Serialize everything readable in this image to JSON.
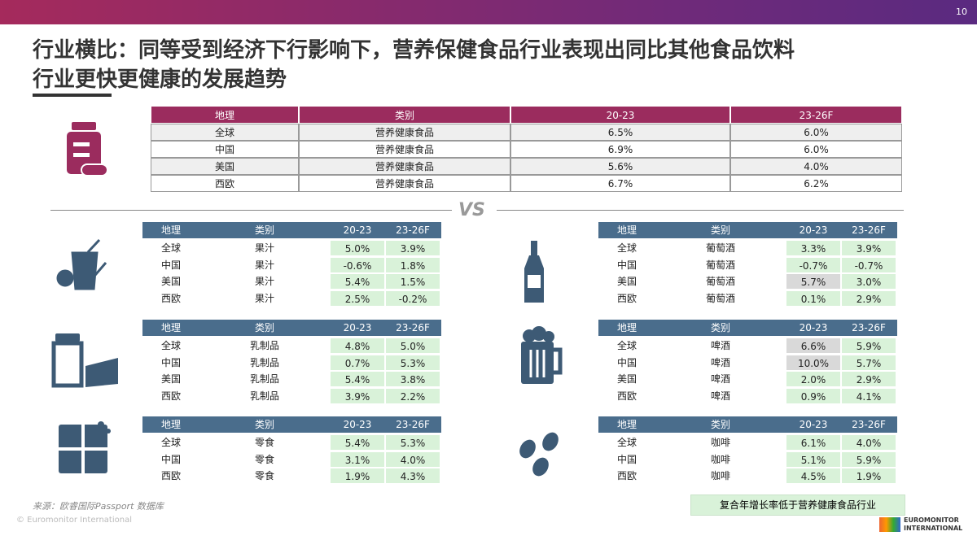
{
  "page_number": "10",
  "title_lines": [
    "行业横比：同等受到经济下行影响下，营养保健食品行业表现出同比其他食品饮料",
    "行业更快更健康的发展趋势"
  ],
  "main_table": {
    "header": [
      "地理",
      "类别",
      "20-23",
      "23-26F"
    ],
    "rows": [
      [
        "全球",
        "营养健康食品",
        "6.5%",
        "6.0%"
      ],
      [
        "中国",
        "营养健康食品",
        "6.9%",
        "6.0%"
      ],
      [
        "美国",
        "营养健康食品",
        "5.6%",
        "4.0%"
      ],
      [
        "西欧",
        "营养健康食品",
        "6.7%",
        "6.2%"
      ]
    ]
  },
  "vs": "VS",
  "tables": [
    {
      "header": [
        "地理",
        "类别",
        "20-23",
        "23-26F"
      ],
      "rows": [
        [
          "全球",
          "果汁",
          "5.0%",
          "3.9%"
        ],
        [
          "中国",
          "果汁",
          "-0.6%",
          "1.8%"
        ],
        [
          "美国",
          "果汁",
          "5.4%",
          "1.5%"
        ],
        [
          "西欧",
          "果汁",
          "2.5%",
          "-0.2%"
        ]
      ],
      "gray_cells": []
    },
    {
      "header": [
        "地理",
        "类别",
        "20-23",
        "23-26F"
      ],
      "rows": [
        [
          "全球",
          "葡萄酒",
          "3.3%",
          "3.9%"
        ],
        [
          "中国",
          "葡萄酒",
          "-0.7%",
          "-0.7%"
        ],
        [
          "美国",
          "葡萄酒",
          "5.7%",
          "3.0%"
        ],
        [
          "西欧",
          "葡萄酒",
          "0.1%",
          "2.9%"
        ]
      ],
      "gray_cells": [
        [
          2,
          2
        ]
      ]
    },
    {
      "header": [
        "地理",
        "类别",
        "20-23",
        "23-26F"
      ],
      "rows": [
        [
          "全球",
          "乳制品",
          "4.8%",
          "5.0%"
        ],
        [
          "中国",
          "乳制品",
          "0.7%",
          "5.3%"
        ],
        [
          "美国",
          "乳制品",
          "5.4%",
          "3.8%"
        ],
        [
          "西欧",
          "乳制品",
          "3.9%",
          "2.2%"
        ]
      ],
      "gray_cells": []
    },
    {
      "header": [
        "地理",
        "类别",
        "20-23",
        "23-26F"
      ],
      "rows": [
        [
          "全球",
          "啤酒",
          "6.6%",
          "5.9%"
        ],
        [
          "中国",
          "啤酒",
          "10.0%",
          "5.7%"
        ],
        [
          "美国",
          "啤酒",
          "2.0%",
          "2.9%"
        ],
        [
          "西欧",
          "啤酒",
          "0.9%",
          "4.1%"
        ]
      ],
      "gray_cells": [
        [
          0,
          2
        ],
        [
          1,
          2
        ]
      ]
    },
    {
      "header": [
        "地理",
        "类别",
        "20-23",
        "23-26F"
      ],
      "rows": [
        [
          "全球",
          "零食",
          "5.4%",
          "5.3%"
        ],
        [
          "中国",
          "零食",
          "3.1%",
          "4.0%"
        ],
        [
          "西欧",
          "零食",
          "1.9%",
          "4.3%"
        ]
      ],
      "gray_cells": []
    },
    {
      "header": [
        "地理",
        "类别",
        "20-23",
        "23-26F"
      ],
      "rows": [
        [
          "全球",
          "咖啡",
          "6.1%",
          "4.0%"
        ],
        [
          "中国",
          "咖啡",
          "5.1%",
          "5.9%"
        ],
        [
          "西欧",
          "咖啡",
          "4.5%",
          "1.9%"
        ]
      ],
      "gray_cells": []
    }
  ],
  "legend_note": "复合年增长率低于营养健康食品行业",
  "source": "来源：欧睿国际Passport 数据库",
  "copyright": "© Euromonitor International",
  "logo": [
    "EUROMONITOR",
    "INTERNATIONAL"
  ]
}
